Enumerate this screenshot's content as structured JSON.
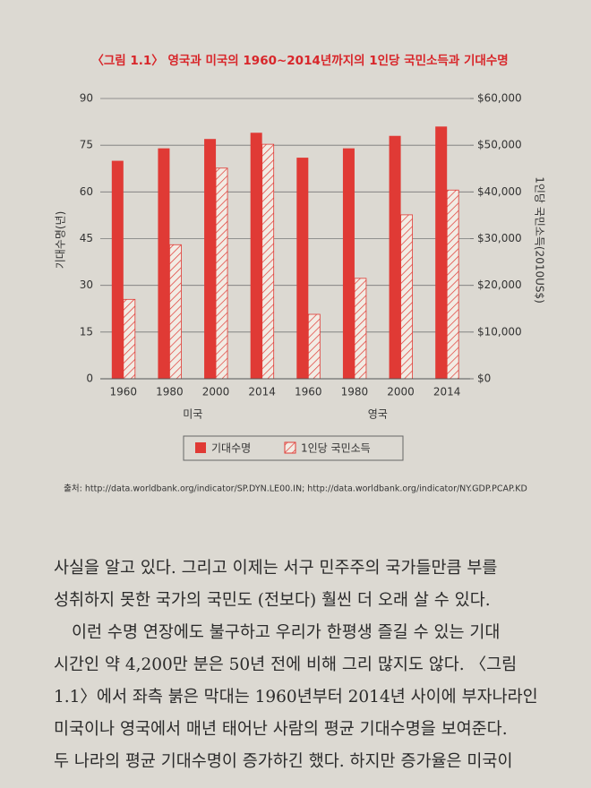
{
  "chart_data": {
    "type": "bar",
    "title": "〈그림 1.1〉 영국과 미국의 1960~2014년까지의 1인당 국민소득과 기대수명",
    "y_label": "기대수명(년)",
    "y2_label": "1인당 국민소득(2010US$)",
    "categories": [
      "1960",
      "1980",
      "2000",
      "2014",
      "1960",
      "1980",
      "2000",
      "2014"
    ],
    "groups": [
      "미국",
      "영국"
    ],
    "series": [
      {
        "name": "기대수명",
        "color": "#e03a35",
        "values": [
          70,
          74,
          77,
          79,
          71,
          74,
          78,
          81
        ]
      },
      {
        "name": "1인당 국민소득",
        "color": "#e03a35",
        "axis": "y2",
        "hatched": true,
        "values": [
          17000,
          28700,
          45100,
          50200,
          13800,
          21500,
          35100,
          40400
        ]
      }
    ],
    "ylim": [
      0,
      90
    ],
    "yticks": [
      0,
      15,
      30,
      45,
      60,
      75,
      90
    ],
    "y2lim": [
      0,
      60000
    ],
    "y2ticks": [
      {
        "value": 0,
        "label": "$0"
      },
      {
        "value": 10000,
        "label": "$10,000"
      },
      {
        "value": 20000,
        "label": "$20,000"
      },
      {
        "value": 30000,
        "label": "$30,000"
      },
      {
        "value": 40000,
        "label": "$40,000"
      },
      {
        "value": 50000,
        "label": "$50,000"
      },
      {
        "value": 60000,
        "label": "$60,000"
      }
    ],
    "grid": true,
    "legend": "bottom"
  },
  "source": "출처: http://data.worldbank.org/indicator/SP.DYN.LE00.IN; http://data.worldbank.org/indicator/NY.GDP.PCAP.KD",
  "body": [
    "사실을 알고 있다. 그리고 이제는 서구 민주주의 국가들만큼 부를",
    "성취하지 못한 국가의 국민도 (전보다) 훨씬 더 오래 살 수 있다.",
    "이런 수명 연장에도 불구하고 우리가 한평생 즐길 수 있는 기대",
    "시간인 약 4,200만 분은 50년 전에 비해 그리 많지도 않다. 〈그림",
    "1.1〉에서 좌측 붉은 막대는 1960년부터 2014년 사이에 부자나라인",
    "미국이나 영국에서 매년 태어난 사람의 평균 기대수명을 보여준다.",
    "두 나라의 평균 기대수명이 증가하긴 했다. 하지만 증가율은 미국이"
  ]
}
